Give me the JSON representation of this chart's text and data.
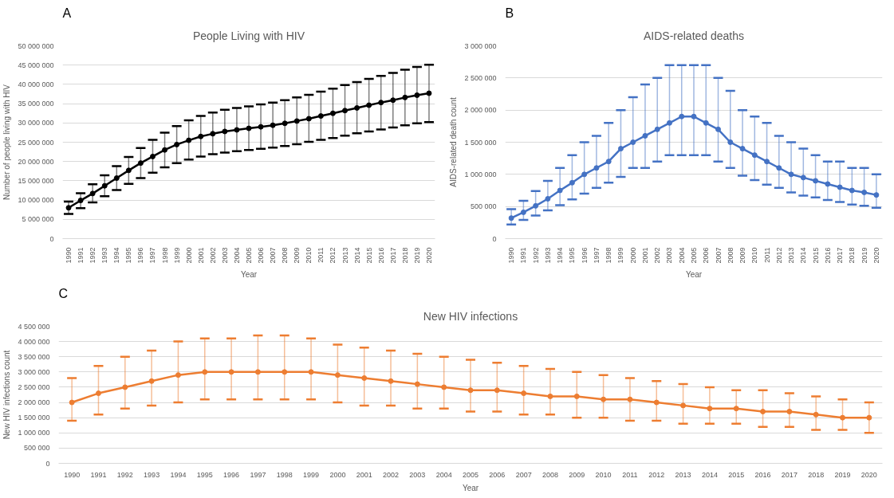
{
  "chart_data": [
    {
      "type": "line",
      "title": "People Living with HIV",
      "annotations": [
        "A"
      ],
      "xlabel": "Year",
      "ylabel": "Number of people living with HIV",
      "color": "#000000",
      "marker": "circle",
      "line_style": "solid",
      "grid": "y",
      "categories": [
        "1990",
        "1991",
        "1992",
        "1993",
        "1994",
        "1995",
        "1996",
        "1997",
        "1998",
        "1999",
        "2000",
        "2001",
        "2002",
        "2003",
        "2004",
        "2005",
        "2006",
        "2007",
        "2008",
        "2009",
        "2010",
        "2011",
        "2012",
        "2013",
        "2014",
        "2015",
        "2016",
        "2017",
        "2018",
        "2019",
        "2020"
      ],
      "values": [
        8000000,
        9900000,
        11700000,
        13700000,
        15700000,
        17700000,
        19600000,
        21300000,
        23000000,
        24400000,
        25500000,
        26500000,
        27200000,
        27800000,
        28200000,
        28600000,
        29000000,
        29400000,
        29900000,
        30500000,
        31100000,
        31800000,
        32500000,
        33200000,
        33900000,
        34600000,
        35300000,
        35900000,
        36600000,
        37200000,
        37700000
      ],
      "errors": [
        [
          6400000,
          9600000
        ],
        [
          7900000,
          11800000
        ],
        [
          9400000,
          14100000
        ],
        [
          11000000,
          16400000
        ],
        [
          12600000,
          18800000
        ],
        [
          14200000,
          21200000
        ],
        [
          15700000,
          23500000
        ],
        [
          17100000,
          25600000
        ],
        [
          18500000,
          27500000
        ],
        [
          19600000,
          29200000
        ],
        [
          20500000,
          30700000
        ],
        [
          21300000,
          31800000
        ],
        [
          21900000,
          32700000
        ],
        [
          22300000,
          33400000
        ],
        [
          22700000,
          33900000
        ],
        [
          23000000,
          34300000
        ],
        [
          23300000,
          34800000
        ],
        [
          23600000,
          35300000
        ],
        [
          24000000,
          35900000
        ],
        [
          24500000,
          36600000
        ],
        [
          25100000,
          37300000
        ],
        [
          25600000,
          38100000
        ],
        [
          26100000,
          38900000
        ],
        [
          26700000,
          39800000
        ],
        [
          27300000,
          40600000
        ],
        [
          27800000,
          41400000
        ],
        [
          28300000,
          42200000
        ],
        [
          28800000,
          43000000
        ],
        [
          29400000,
          43800000
        ],
        [
          29900000,
          44500000
        ],
        [
          30200000,
          45100000
        ]
      ],
      "ylim": [
        0,
        50000000
      ],
      "yticks": [
        0,
        {
          "value": 5000000,
          "label": "5 000 000"
        },
        {
          "value": 10000000,
          "label": "10 000 000"
        },
        {
          "value": 15000000,
          "label": "15 000 000"
        },
        {
          "value": 20000000,
          "label": "20 000 000"
        },
        {
          "value": 25000000,
          "label": "25 000 000"
        },
        {
          "value": 30000000,
          "label": "30 000 000"
        },
        {
          "value": 35000000,
          "label": "35 000 000"
        },
        {
          "value": 40000000,
          "label": "40 000 000"
        },
        {
          "value": 45000000,
          "label": "45 000 000"
        },
        {
          "value": 50000000,
          "label": "50 000 000"
        }
      ]
    },
    {
      "type": "line",
      "title": "AIDS-related deaths",
      "annotations": [
        "B"
      ],
      "xlabel": "Year",
      "ylabel": "AIDS-related death count",
      "color": "#4472c4",
      "marker": "circle",
      "line_style": "solid",
      "grid": "y",
      "categories": [
        "1990",
        "1991",
        "1992",
        "1993",
        "1994",
        "1995",
        "1996",
        "1997",
        "1998",
        "1999",
        "2000",
        "2001",
        "2002",
        "2003",
        "2004",
        "2005",
        "2006",
        "2007",
        "2008",
        "2009",
        "2010",
        "2011",
        "2012",
        "2013",
        "2014",
        "2015",
        "2016",
        "2017",
        "2018",
        "2019",
        "2020"
      ],
      "values": [
        320000,
        410000,
        510000,
        620000,
        750000,
        870000,
        1000000,
        1100000,
        1200000,
        1400000,
        1500000,
        1600000,
        1700000,
        1800000,
        1900000,
        1900000,
        1800000,
        1700000,
        1500000,
        1400000,
        1300000,
        1200000,
        1100000,
        1000000,
        950000,
        900000,
        850000,
        800000,
        750000,
        720000,
        680000
      ],
      "errors": [
        [
          220000,
          460000
        ],
        [
          290000,
          590000
        ],
        [
          360000,
          740000
        ],
        [
          440000,
          900000
        ],
        [
          520000,
          1100000
        ],
        [
          610000,
          1300000
        ],
        [
          700000,
          1500000
        ],
        [
          790000,
          1600000
        ],
        [
          870000,
          1800000
        ],
        [
          960000,
          2000000
        ],
        [
          1100000,
          2200000
        ],
        [
          1100000,
          2400000
        ],
        [
          1200000,
          2500000
        ],
        [
          1300000,
          2700000
        ],
        [
          1300000,
          2700000
        ],
        [
          1300000,
          2700000
        ],
        [
          1300000,
          2700000
        ],
        [
          1200000,
          2500000
        ],
        [
          1100000,
          2300000
        ],
        [
          980000,
          2000000
        ],
        [
          910000,
          1900000
        ],
        [
          840000,
          1800000
        ],
        [
          790000,
          1600000
        ],
        [
          720000,
          1500000
        ],
        [
          670000,
          1400000
        ],
        [
          640000,
          1300000
        ],
        [
          600000,
          1200000
        ],
        [
          570000,
          1200000
        ],
        [
          530000,
          1100000
        ],
        [
          510000,
          1100000
        ],
        [
          480000,
          1000000
        ]
      ],
      "ylim": [
        0,
        3000000
      ],
      "yticks": [
        0,
        {
          "value": 500000,
          "label": "500 000"
        },
        {
          "value": 1000000,
          "label": "1 000 000"
        },
        {
          "value": 1500000,
          "label": "1 500 000"
        },
        {
          "value": 2000000,
          "label": "2 000 000"
        },
        {
          "value": 2500000,
          "label": "2 500 000"
        },
        {
          "value": 3000000,
          "label": "3 000 000"
        }
      ]
    },
    {
      "type": "line",
      "title": "New HIV infections",
      "annotations": [
        "C"
      ],
      "xlabel": "Year",
      "ylabel": "New HIV infections count",
      "color": "#ed7d31",
      "marker": "circle",
      "line_style": "solid",
      "grid": "y",
      "categories": [
        "1990",
        "1991",
        "1992",
        "1993",
        "1994",
        "1995",
        "1996",
        "1997",
        "1998",
        "1999",
        "2000",
        "2001",
        "2002",
        "2003",
        "2004",
        "2005",
        "2006",
        "2007",
        "2008",
        "2009",
        "2010",
        "2011",
        "2012",
        "2013",
        "2014",
        "2015",
        "2016",
        "2017",
        "2018",
        "2019",
        "2020"
      ],
      "values": [
        2000000,
        2300000,
        2500000,
        2700000,
        2900000,
        3000000,
        3000000,
        3000000,
        3000000,
        3000000,
        2900000,
        2800000,
        2700000,
        2600000,
        2500000,
        2400000,
        2400000,
        2300000,
        2200000,
        2200000,
        2100000,
        2100000,
        2000000,
        1900000,
        1800000,
        1800000,
        1700000,
        1700000,
        1600000,
        1500000,
        1500000
      ],
      "errors": [
        [
          1400000,
          2800000
        ],
        [
          1600000,
          3200000
        ],
        [
          1800000,
          3500000
        ],
        [
          1900000,
          3700000
        ],
        [
          2000000,
          4000000
        ],
        [
          2100000,
          4100000
        ],
        [
          2100000,
          4100000
        ],
        [
          2100000,
          4200000
        ],
        [
          2100000,
          4200000
        ],
        [
          2100000,
          4100000
        ],
        [
          2000000,
          3900000
        ],
        [
          1900000,
          3800000
        ],
        [
          1900000,
          3700000
        ],
        [
          1800000,
          3600000
        ],
        [
          1800000,
          3500000
        ],
        [
          1700000,
          3400000
        ],
        [
          1700000,
          3300000
        ],
        [
          1600000,
          3200000
        ],
        [
          1600000,
          3100000
        ],
        [
          1500000,
          3000000
        ],
        [
          1500000,
          2900000
        ],
        [
          1400000,
          2800000
        ],
        [
          1400000,
          2700000
        ],
        [
          1300000,
          2600000
        ],
        [
          1300000,
          2500000
        ],
        [
          1300000,
          2400000
        ],
        [
          1200000,
          2400000
        ],
        [
          1200000,
          2300000
        ],
        [
          1100000,
          2200000
        ],
        [
          1100000,
          2100000
        ],
        [
          1000000,
          2000000
        ]
      ],
      "ylim": [
        0,
        4500000
      ],
      "yticks": [
        0,
        {
          "value": 500000,
          "label": "500 000"
        },
        {
          "value": 1000000,
          "label": "1 000 000"
        },
        {
          "value": 1500000,
          "label": "1 500 000"
        },
        {
          "value": 2000000,
          "label": "2 000 000"
        },
        {
          "value": 2500000,
          "label": "2 500 000"
        },
        {
          "value": 3000000,
          "label": "3 000 000"
        },
        {
          "value": 3500000,
          "label": "3 500 000"
        },
        {
          "value": 4000000,
          "label": "4 000 000"
        },
        {
          "value": 4500000,
          "label": "4 500 000"
        }
      ]
    }
  ]
}
